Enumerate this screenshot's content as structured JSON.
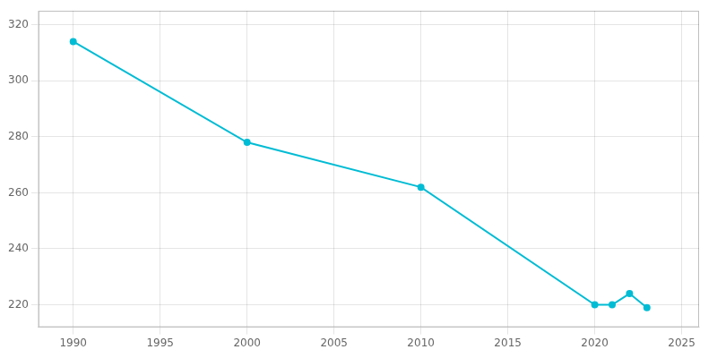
{
  "chart_data": {
    "type": "line",
    "x": [
      1990,
      2000,
      2010,
      2020,
      2021,
      2022,
      2023
    ],
    "values": [
      314,
      278,
      262,
      220,
      220,
      224,
      219
    ],
    "color": "#00bcd4",
    "marker": "circle",
    "xlim": [
      1988,
      2026
    ],
    "xticks": [
      1990,
      1995,
      2000,
      2005,
      2010,
      2015,
      2020,
      2025
    ],
    "ylim": [
      212,
      325
    ],
    "yticks": [
      220,
      240,
      260,
      280,
      300,
      320
    ],
    "grid": true
  }
}
